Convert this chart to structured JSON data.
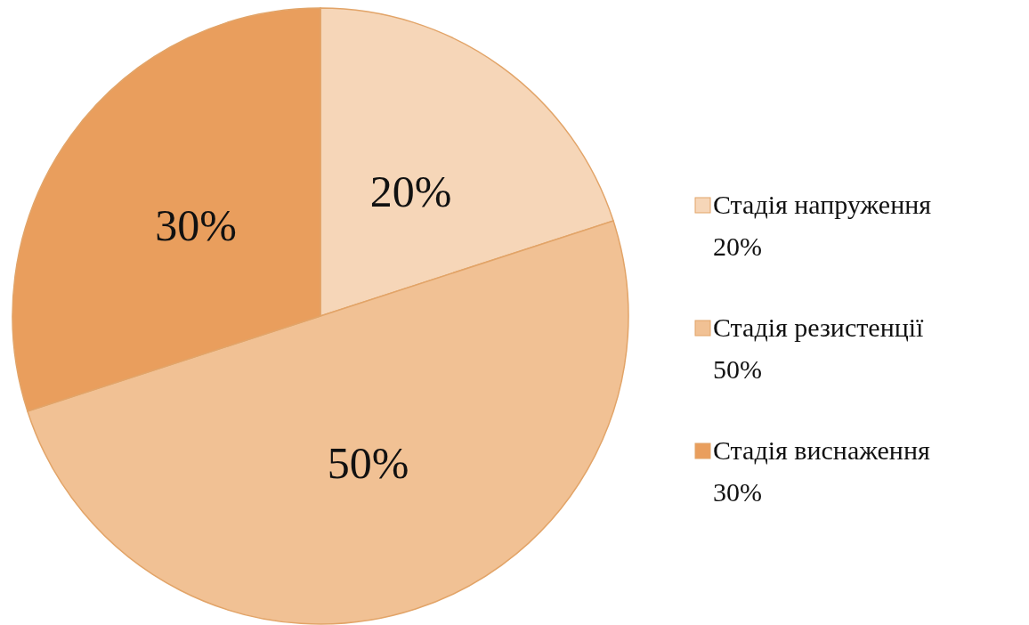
{
  "chart_data": {
    "type": "pie",
    "categories": [
      "Стадія напруження",
      "Стадія резистенції",
      "Стадія виснаження"
    ],
    "values": [
      20,
      50,
      30
    ],
    "value_labels": [
      "20%",
      "50%",
      "30%"
    ],
    "colors": [
      "#f6d6b8",
      "#f1c194",
      "#e99e5d"
    ],
    "legend": "right"
  }
}
